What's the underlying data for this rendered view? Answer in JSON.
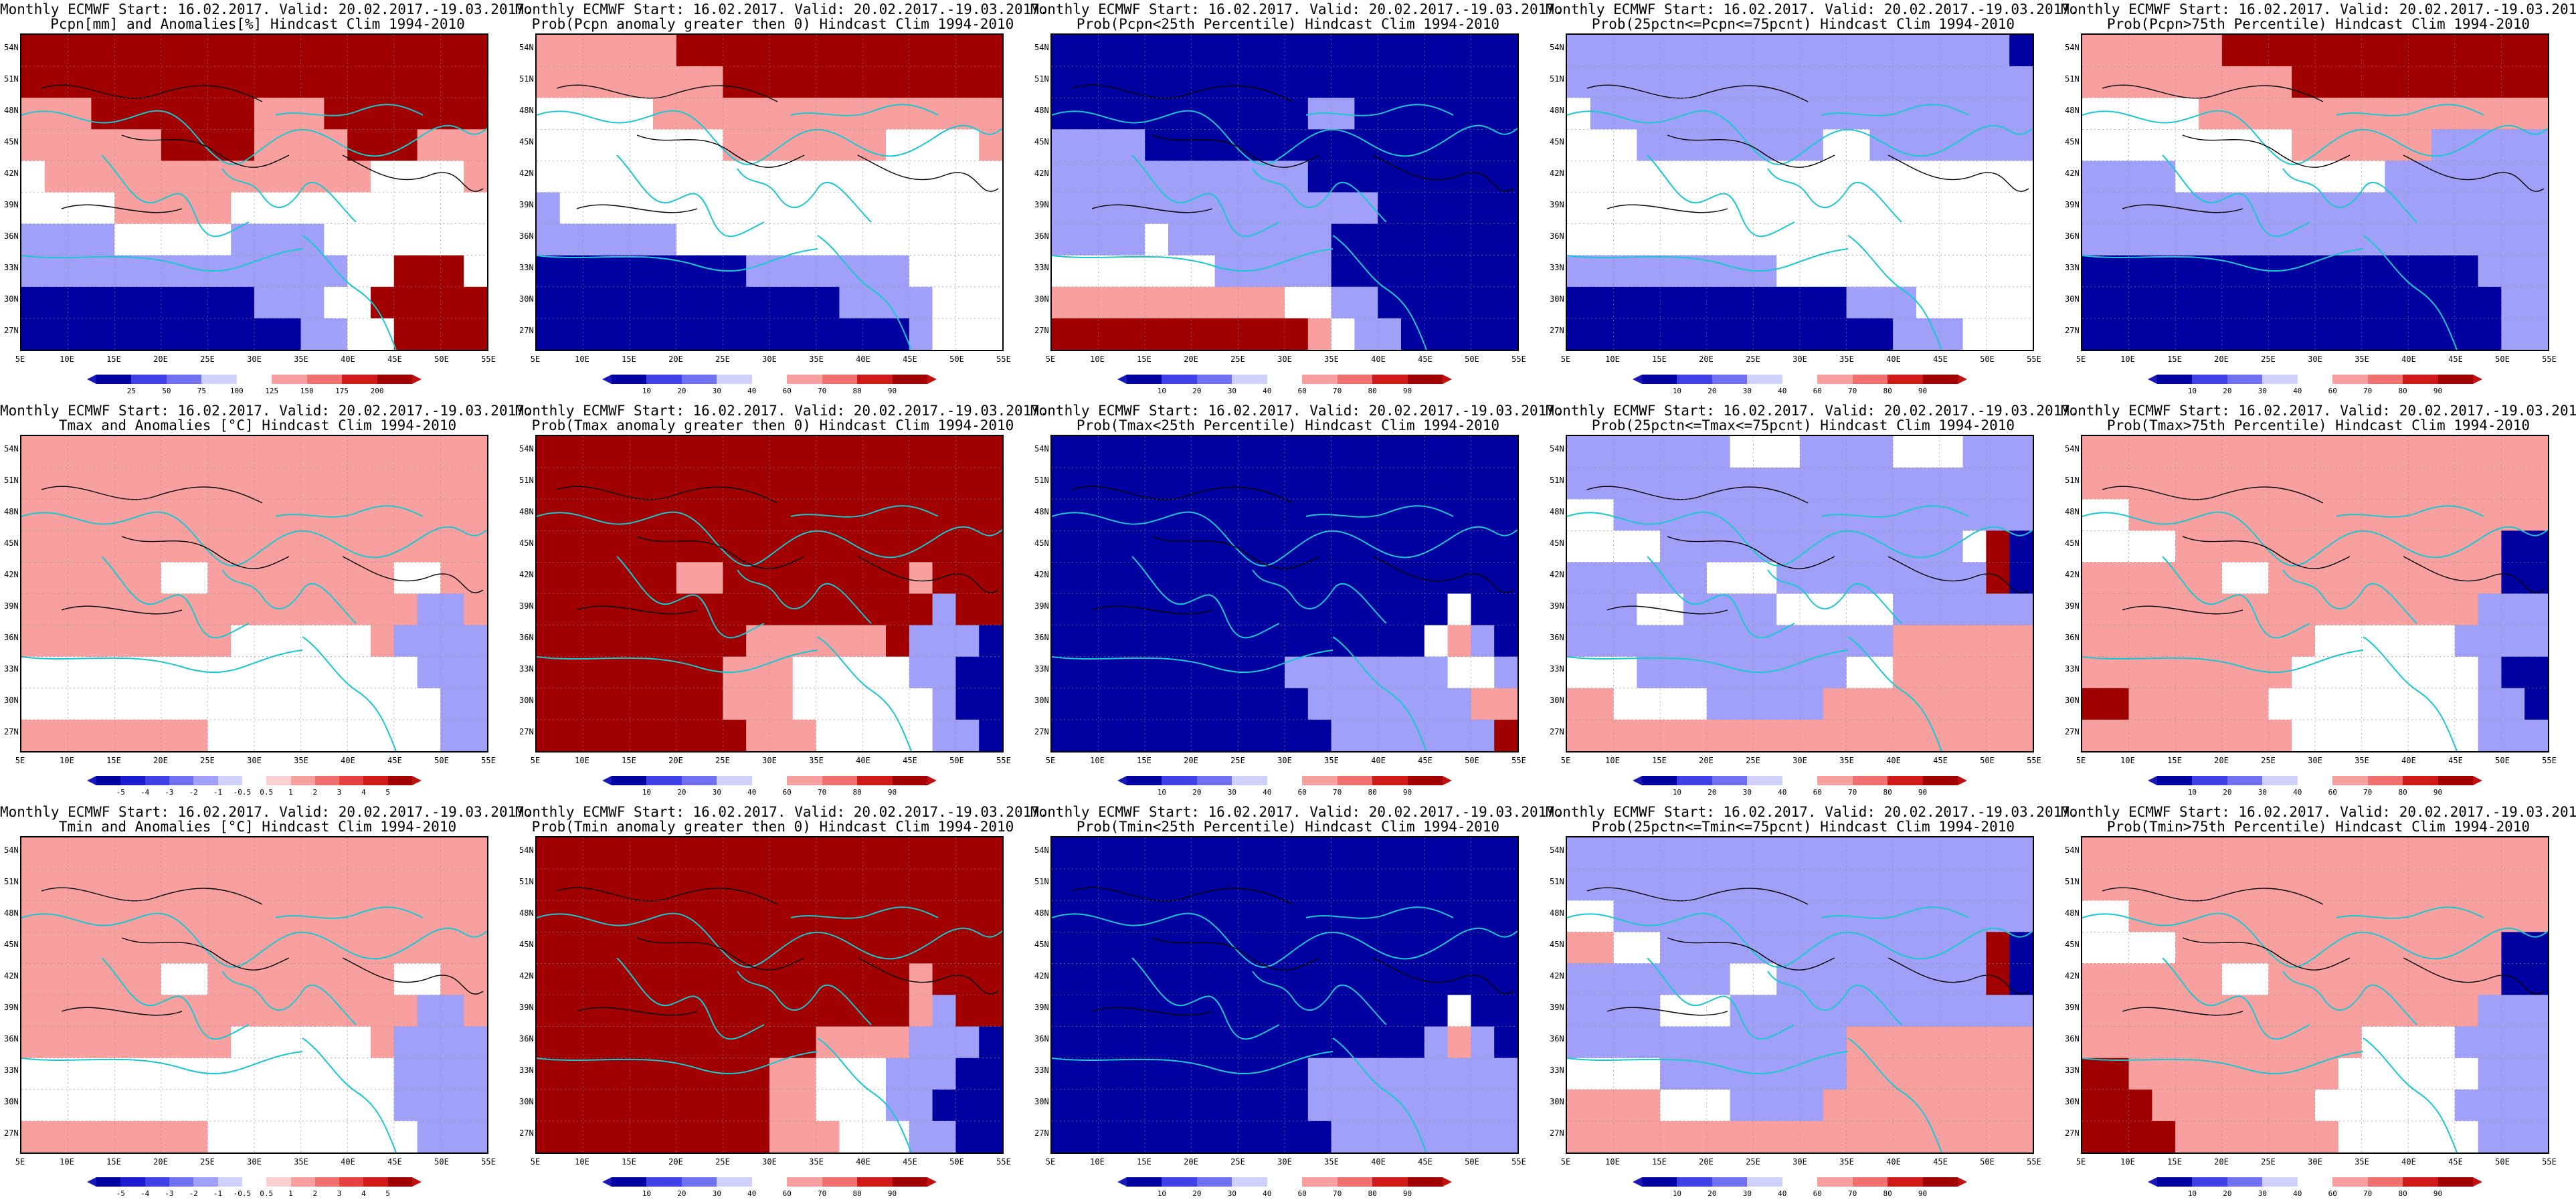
{
  "common": {
    "title_line1": "Monthly ECMWF Start: 16.02.2017. Valid: 20.02.2017.-19.03.2017.",
    "lat_labels": [
      "54N",
      "51N",
      "48N",
      "45N",
      "42N",
      "39N",
      "36N",
      "33N",
      "30N",
      "27N"
    ],
    "lon_labels": [
      "5E",
      "10E",
      "15E",
      "20E",
      "25E",
      "30E",
      "35E",
      "40E",
      "45E",
      "50E",
      "55E"
    ]
  },
  "panels": [
    {
      "title2": "Pcpn[mm] and Anomalies[%] Hindcast Clim 1994-2010",
      "scheme": "pcpn_anom",
      "ticks": [
        "25",
        "50",
        "75",
        "100",
        "125",
        "150",
        "175",
        "200"
      ]
    },
    {
      "title2": "Prob(Pcpn anomaly greater then 0) Hindcast Clim 1994-2010",
      "scheme": "pcpn_prob0",
      "ticks": [
        "10",
        "20",
        "30",
        "40",
        "60",
        "70",
        "80",
        "90"
      ]
    },
    {
      "title2": "Prob(Pcpn<25th Percentile) Hindcast Clim 1994-2010",
      "scheme": "pcpn_low",
      "ticks": [
        "10",
        "20",
        "30",
        "40",
        "60",
        "70",
        "80",
        "90"
      ]
    },
    {
      "title2": "Prob(25pctn<=Pcpn<=75pcnt) Hindcast Clim 1994-2010",
      "scheme": "pcpn_mid",
      "ticks": [
        "10",
        "20",
        "30",
        "40",
        "60",
        "70",
        "80",
        "90"
      ]
    },
    {
      "title2": "Prob(Pcpn>75th Percentile) Hindcast Clim 1994-2010",
      "scheme": "pcpn_high",
      "ticks": [
        "10",
        "20",
        "30",
        "40",
        "60",
        "70",
        "80",
        "90"
      ]
    },
    {
      "title2": "Tmax and Anomalies [°C] Hindcast Clim 1994-2010",
      "scheme": "tmax_anom",
      "ticks": [
        "-5",
        "-4",
        "-3",
        "-2",
        "-1",
        "-0.5",
        "0.5",
        "1",
        "2",
        "3",
        "4",
        "5"
      ]
    },
    {
      "title2": "Prob(Tmax anomaly greater then 0) Hindcast Clim 1994-2010",
      "scheme": "tmax_prob0",
      "ticks": [
        "10",
        "20",
        "30",
        "40",
        "60",
        "70",
        "80",
        "90"
      ]
    },
    {
      "title2": "Prob(Tmax<25th Percentile) Hindcast Clim 1994-2010",
      "scheme": "tmax_low",
      "ticks": [
        "10",
        "20",
        "30",
        "40",
        "60",
        "70",
        "80",
        "90"
      ]
    },
    {
      "title2": "Prob(25pctn<=Tmax<=75pcnt) Hindcast Clim 1994-2010",
      "scheme": "tmax_mid",
      "ticks": [
        "10",
        "20",
        "30",
        "40",
        "60",
        "70",
        "80",
        "90"
      ]
    },
    {
      "title2": "Prob(Tmax>75th Percentile) Hindcast Clim 1994-2010",
      "scheme": "tmax_high",
      "ticks": [
        "10",
        "20",
        "30",
        "40",
        "60",
        "70",
        "80",
        "90"
      ]
    },
    {
      "title2": "Tmin and Anomalies [°C] Hindcast Clim 1994-2010",
      "scheme": "tmin_anom",
      "ticks": [
        "-5",
        "-4",
        "-3",
        "-2",
        "-1",
        "-0.5",
        "0.5",
        "1",
        "2",
        "3",
        "4",
        "5"
      ]
    },
    {
      "title2": "Prob(Tmin anomaly greater then 0) Hindcast Clim 1994-2010",
      "scheme": "tmin_prob0",
      "ticks": [
        "10",
        "20",
        "30",
        "40",
        "60",
        "70",
        "80",
        "90"
      ]
    },
    {
      "title2": "Prob(Tmin<25th Percentile) Hindcast Clim 1994-2010",
      "scheme": "tmin_low",
      "ticks": [
        "10",
        "20",
        "30",
        "40",
        "60",
        "70",
        "80",
        "90"
      ]
    },
    {
      "title2": "Prob(25pctn<=Tmin<=75pcnt) Hindcast Clim 1994-2010",
      "scheme": "tmin_mid",
      "ticks": [
        "10",
        "20",
        "30",
        "40",
        "60",
        "70",
        "80",
        "90"
      ]
    },
    {
      "title2": "Prob(Tmin>75th Percentile) Hindcast Clim 1994-2010",
      "scheme": "tmin_high",
      "ticks": [
        "10",
        "20",
        "30",
        "40",
        "60",
        "70",
        "80",
        "90"
      ]
    }
  ],
  "colors": {
    "blues": [
      "#0000a0",
      "#1a1ad0",
      "#4040e8",
      "#7070f0",
      "#a0a0f8",
      "#d0d0fc"
    ],
    "reds": [
      "#fcd0d0",
      "#f8a0a0",
      "#f07070",
      "#e84040",
      "#d01a1a",
      "#a00000"
    ],
    "contour": "#000000",
    "coast": "#18c8d0"
  }
}
